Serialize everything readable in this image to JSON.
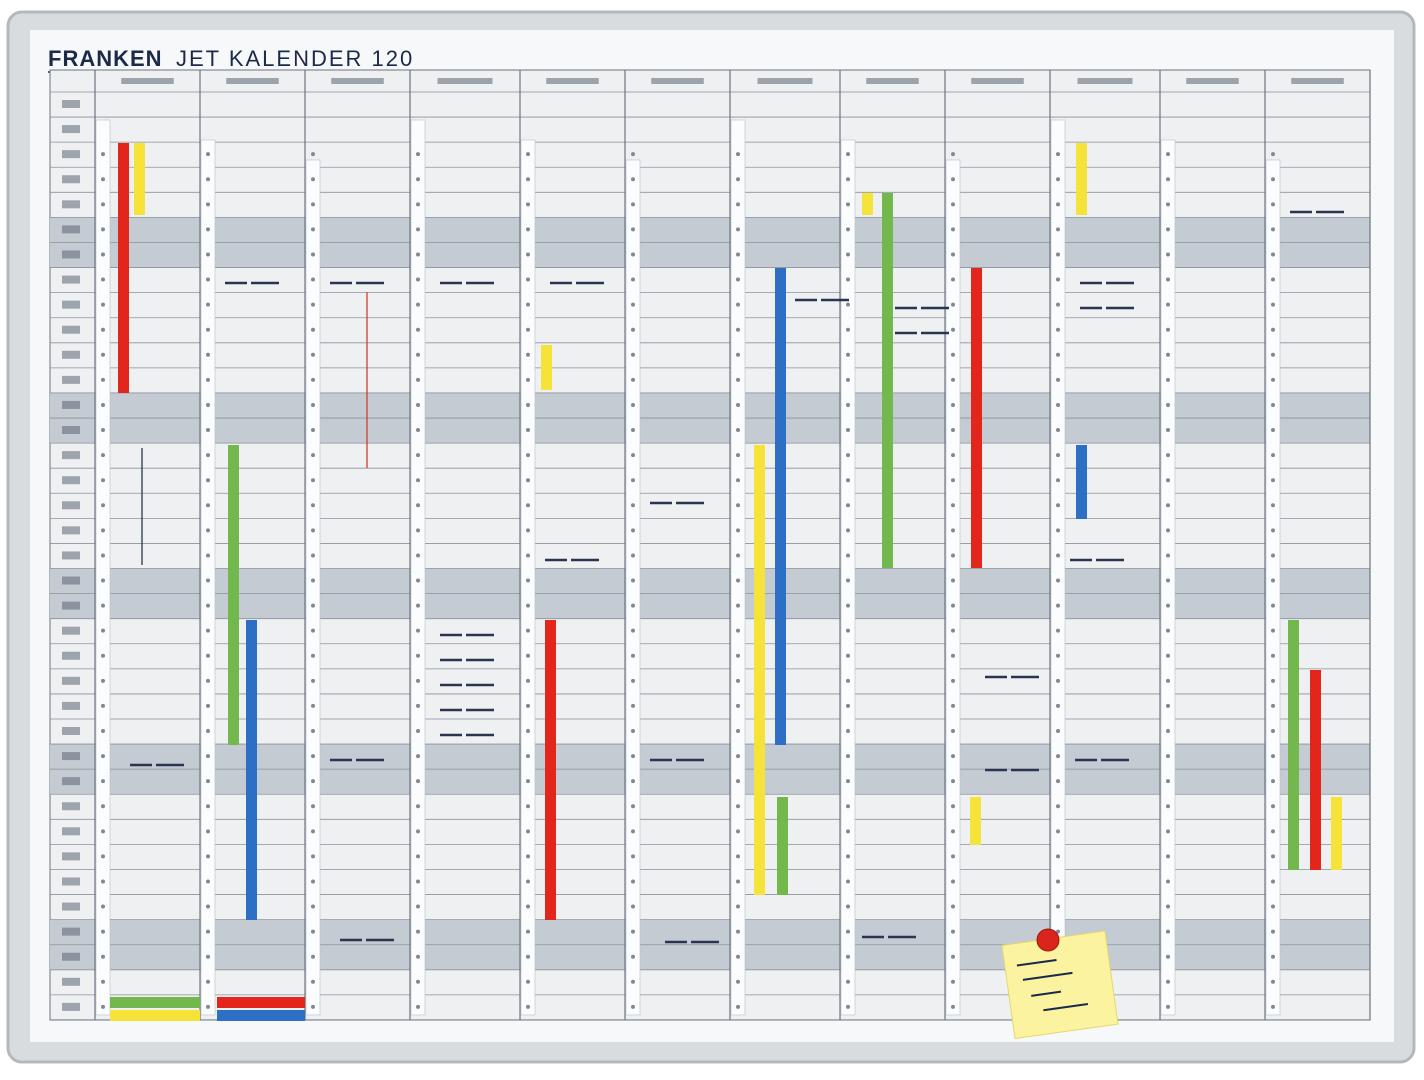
{
  "header": {
    "brand": "FRANKEN",
    "title": "JET KALENDER 120"
  }
}
